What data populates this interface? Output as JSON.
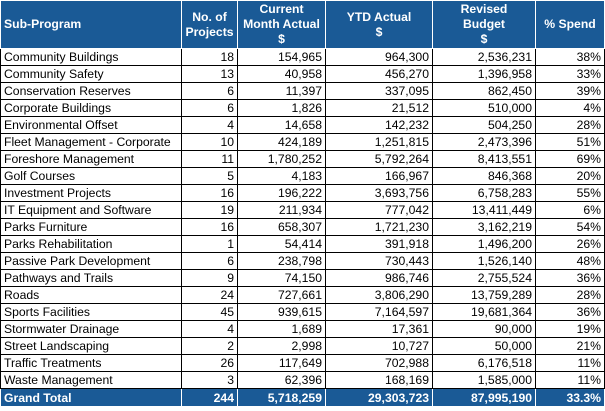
{
  "table": {
    "header_color": "#1a5a96",
    "columns": [
      {
        "lines": [
          "Sub-Program"
        ]
      },
      {
        "lines": [
          "No. of",
          "Projects"
        ]
      },
      {
        "lines": [
          "Current",
          "Month Actual",
          "$"
        ]
      },
      {
        "lines": [
          "YTD Actual",
          "$"
        ]
      },
      {
        "lines": [
          "Revised",
          "Budget",
          "$"
        ]
      },
      {
        "lines": [
          "% Spend"
        ]
      }
    ],
    "rows": [
      [
        "Community Buildings",
        "18",
        "154,965",
        "964,300",
        "2,536,231",
        "38%"
      ],
      [
        "Community Safety",
        "13",
        "40,958",
        "456,270",
        "1,396,958",
        "33%"
      ],
      [
        "Conservation Reserves",
        "6",
        "11,397",
        "337,095",
        "862,450",
        "39%"
      ],
      [
        "Corporate Buildings",
        "6",
        "1,826",
        "21,512",
        "510,000",
        "4%"
      ],
      [
        "Environmental Offset",
        "4",
        "14,658",
        "142,232",
        "504,250",
        "28%"
      ],
      [
        "Fleet Management - Corporate",
        "10",
        "424,189",
        "1,251,815",
        "2,473,396",
        "51%"
      ],
      [
        "Foreshore Management",
        "11",
        "1,780,252",
        "5,792,264",
        "8,413,551",
        "69%"
      ],
      [
        "Golf Courses",
        "5",
        "4,183",
        "166,967",
        "846,368",
        "20%"
      ],
      [
        "Investment Projects",
        "16",
        "196,222",
        "3,693,756",
        "6,758,283",
        "55%"
      ],
      [
        "IT Equipment and Software",
        "19",
        "211,934",
        "777,042",
        "13,411,449",
        "6%"
      ],
      [
        "Parks Furniture",
        "16",
        "658,307",
        "1,721,230",
        "3,162,219",
        "54%"
      ],
      [
        "Parks Rehabilitation",
        "1",
        "54,414",
        "391,918",
        "1,496,200",
        "26%"
      ],
      [
        "Passive Park Development",
        "6",
        "238,798",
        "730,443",
        "1,526,140",
        "48%"
      ],
      [
        "Pathways and Trails",
        "9",
        "74,150",
        "986,746",
        "2,755,524",
        "36%"
      ],
      [
        "Roads",
        "24",
        "727,661",
        "3,806,290",
        "13,759,289",
        "28%"
      ],
      [
        "Sports Facilities",
        "45",
        "939,615",
        "7,164,597",
        "19,681,364",
        "36%"
      ],
      [
        "Stormwater Drainage",
        "4",
        "1,689",
        "17,361",
        "90,000",
        "19%"
      ],
      [
        "Street Landscaping",
        "2",
        "2,998",
        "10,727",
        "50,000",
        "21%"
      ],
      [
        "Traffic Treatments",
        "26",
        "117,649",
        "702,988",
        "6,176,518",
        "11%"
      ],
      [
        "Waste Management",
        "3",
        "62,396",
        "168,169",
        "1,585,000",
        "11%"
      ]
    ],
    "total": [
      "Grand Total",
      "244",
      "5,718,259",
      "29,303,723",
      "87,995,190",
      "33.3%"
    ]
  }
}
